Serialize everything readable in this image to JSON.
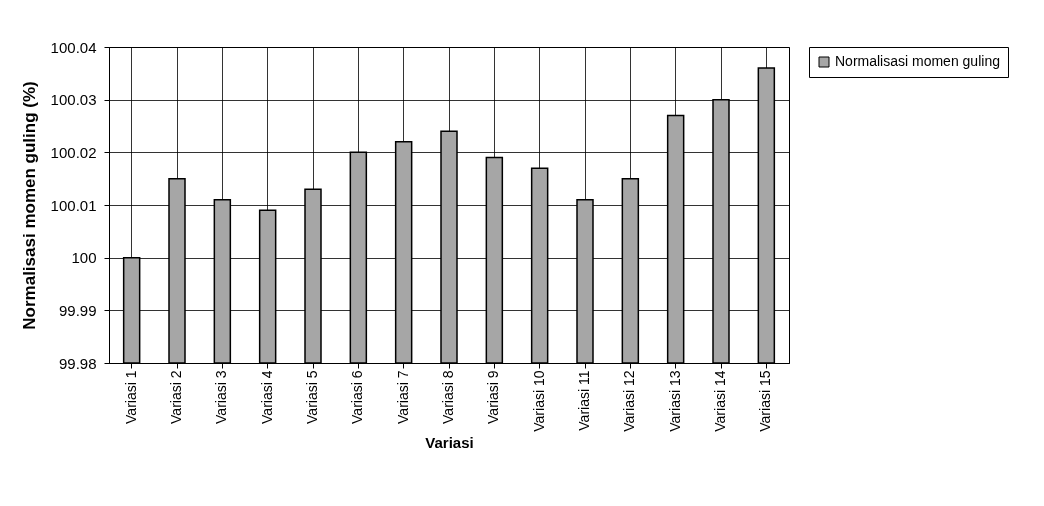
{
  "chart_data": {
    "type": "bar",
    "xlabel": "Variasi",
    "ylabel": "Normalisasi momen guling (%)",
    "categories": [
      "Variasi 1",
      "Variasi 2",
      "Variasi 3",
      "Variasi 4",
      "Variasi 5",
      "Variasi 6",
      "Variasi 7",
      "Variasi 8",
      "Variasi 9",
      "Variasi 10",
      "Variasi 11",
      "Variasi 12",
      "Variasi 13",
      "Variasi 14",
      "Variasi 15"
    ],
    "series": [
      {
        "name": "Normalisasi momen guling",
        "color": "#a6a6a6",
        "values": [
          100.0,
          100.015,
          100.011,
          100.009,
          100.013,
          100.02,
          100.022,
          100.024,
          100.019,
          100.017,
          100.011,
          100.015,
          100.027,
          100.03,
          100.036
        ]
      }
    ],
    "ylim": [
      99.98,
      100.04
    ],
    "yticks": [
      99.98,
      99.99,
      100,
      100.01,
      100.02,
      100.03,
      100.04
    ],
    "grid": true,
    "legend": "right"
  }
}
